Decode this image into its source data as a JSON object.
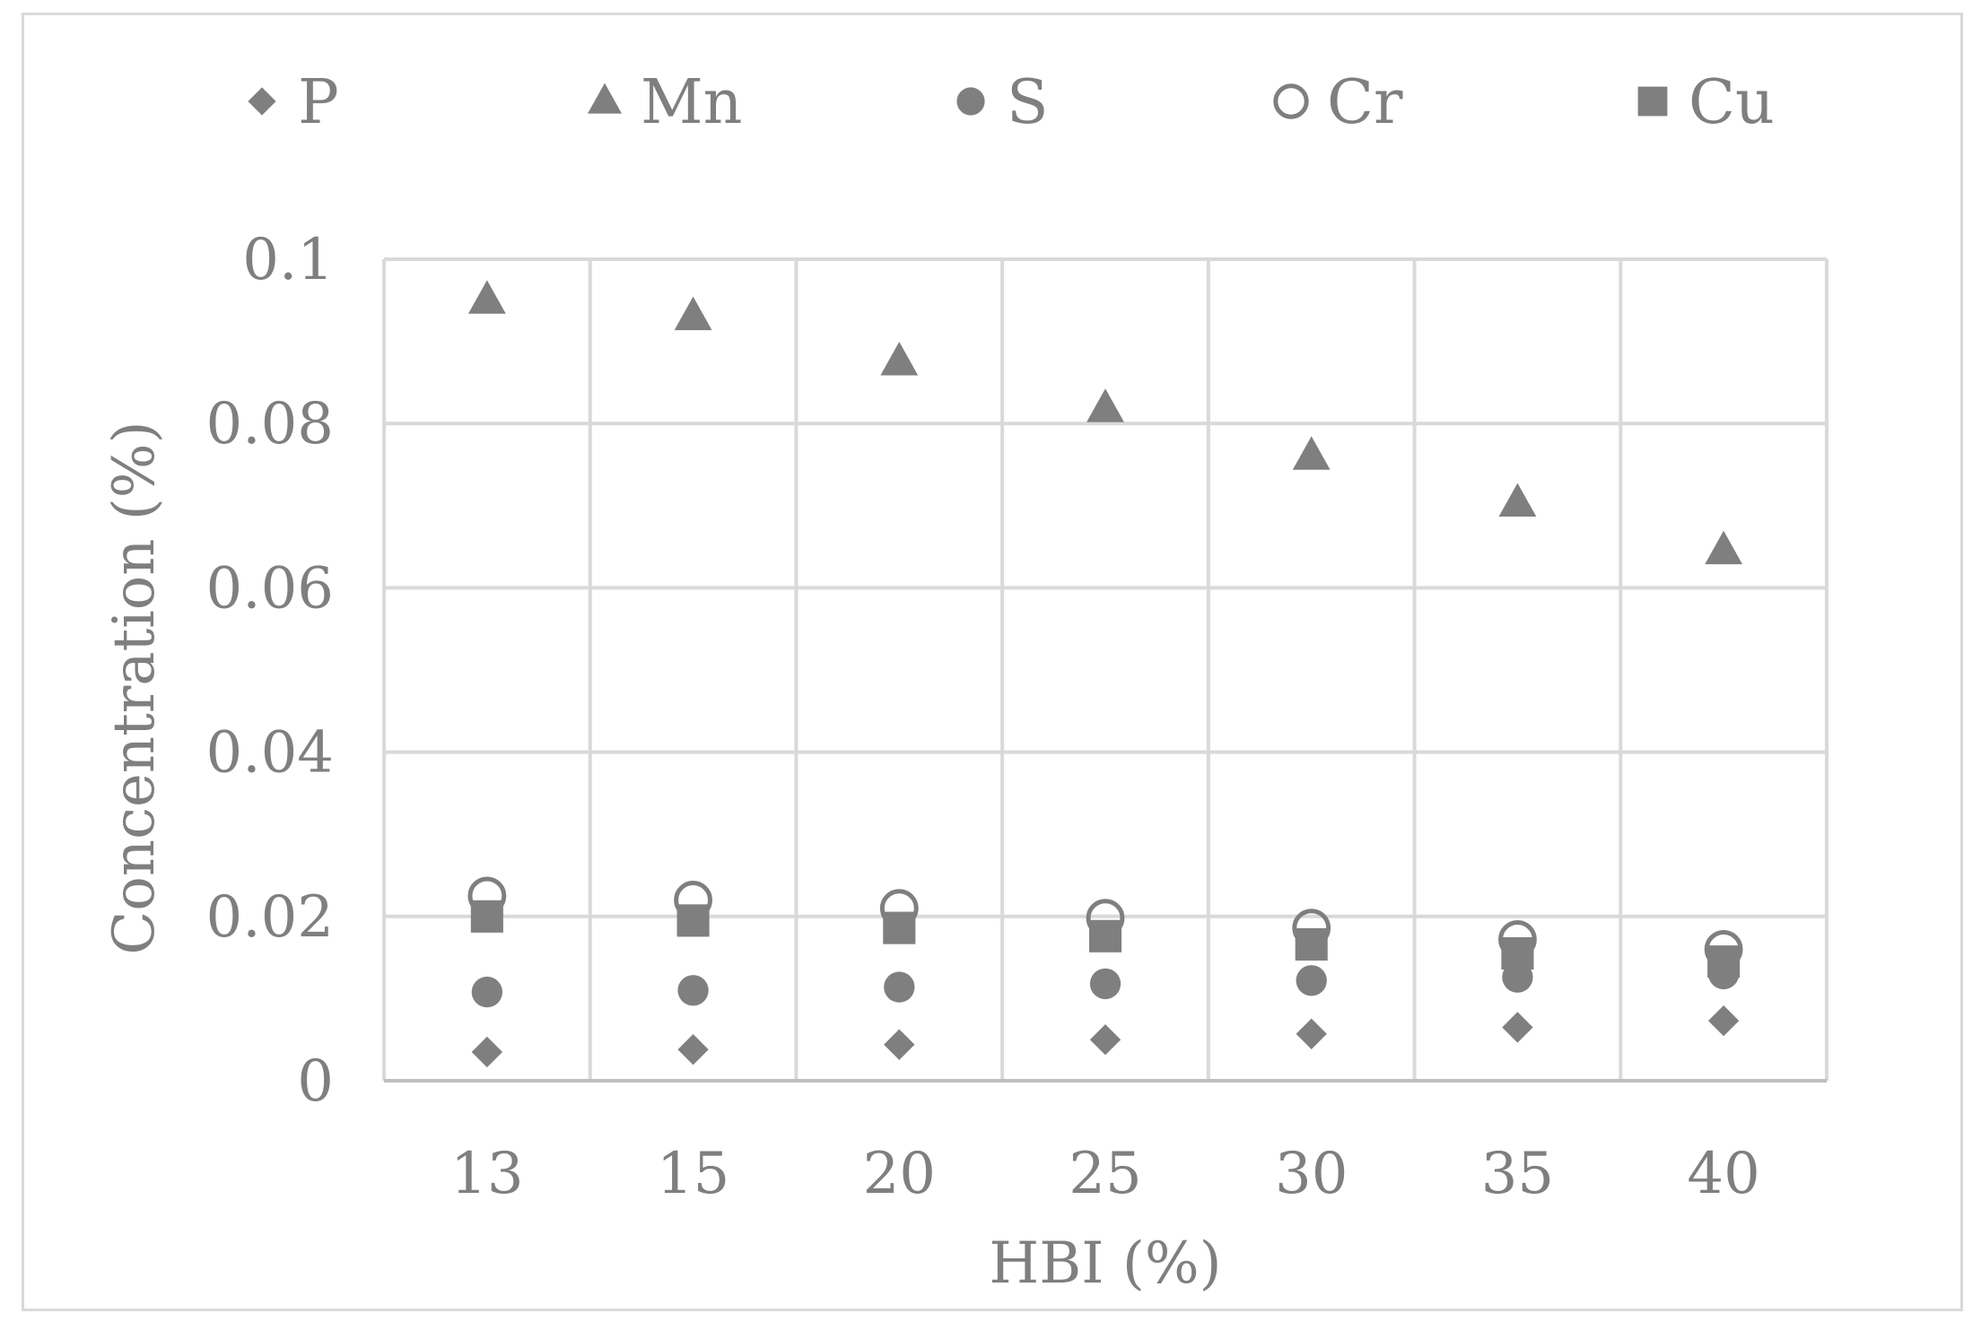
{
  "chart_data": {
    "type": "scatter",
    "title": "",
    "xlabel": "HBI (%)",
    "ylabel": "Concentration (%)",
    "categories": [
      "13",
      "15",
      "20",
      "25",
      "30",
      "35",
      "40"
    ],
    "ylim": [
      0,
      0.1
    ],
    "yticks": [
      0,
      0.02,
      0.04,
      0.06,
      0.08,
      0.1
    ],
    "ytick_labels": [
      "0",
      "0.02",
      "0.04",
      "0.06",
      "0.08",
      "0.1"
    ],
    "grid": true,
    "legend_position": "top",
    "series": [
      {
        "name": "P",
        "marker": "diamond",
        "color": "#7f7f7f",
        "values": [
          0.0035,
          0.0038,
          0.0044,
          0.005,
          0.0057,
          0.0065,
          0.0073
        ]
      },
      {
        "name": "Mn",
        "marker": "triangle",
        "color": "#7f7f7f",
        "values": [
          0.095,
          0.093,
          0.0875,
          0.0818,
          0.076,
          0.0703,
          0.0645
        ]
      },
      {
        "name": "S",
        "marker": "circle",
        "color": "#7f7f7f",
        "values": [
          0.0108,
          0.011,
          0.0114,
          0.0118,
          0.0122,
          0.0126,
          0.013
        ]
      },
      {
        "name": "Cr",
        "marker": "hollow-circle",
        "color": "#7f7f7f",
        "values": [
          0.0225,
          0.022,
          0.021,
          0.0198,
          0.0186,
          0.0172,
          0.016
        ]
      },
      {
        "name": "Cu",
        "marker": "square",
        "color": "#7f7f7f",
        "values": [
          0.02,
          0.0195,
          0.0186,
          0.0176,
          0.0166,
          0.0155,
          0.0145
        ]
      }
    ]
  }
}
